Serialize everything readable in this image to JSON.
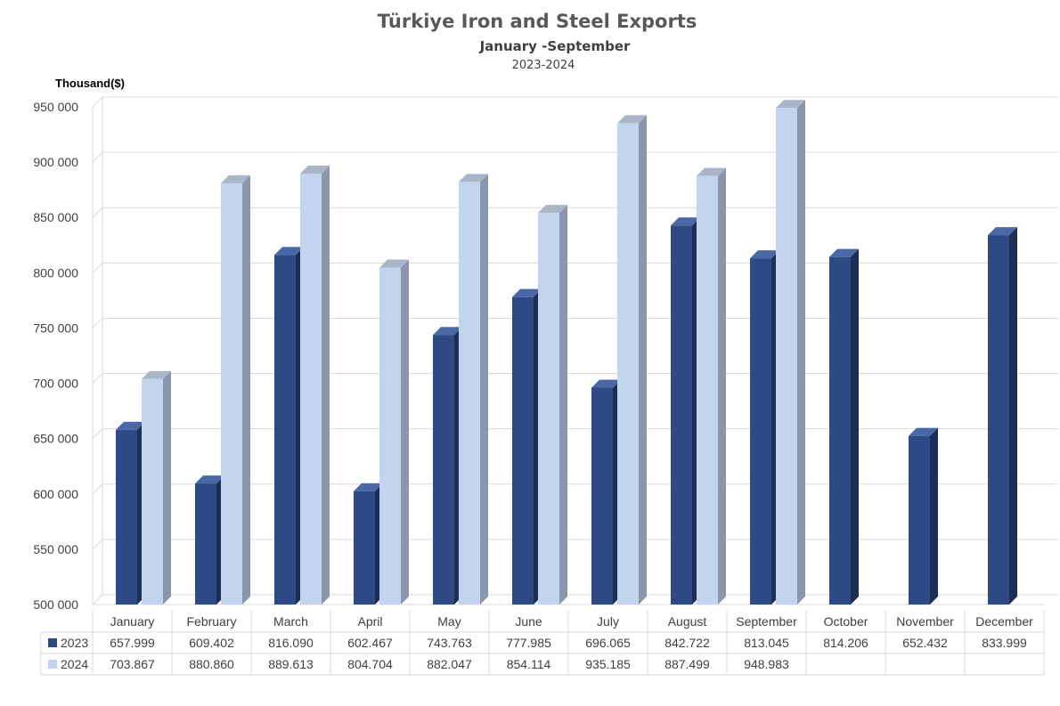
{
  "colors": {
    "series_2023": "#2e4a84",
    "series_2023_side": "#1c2e55",
    "series_2023_top": "#4a68a6",
    "series_2024": "#c3d4ef",
    "series_2024_side": "#8a96ab",
    "series_2024_top": "#aab5c8",
    "grid": "#d9d9d9",
    "text": "#404040",
    "title": "#595959"
  },
  "chart_data": {
    "type": "bar",
    "title": "Türkiye Iron and Steel Exports",
    "subtitle": "January -September",
    "period": "2023-2024",
    "ylabel": "Thousand($)",
    "xlabel": "",
    "ylim": [
      500000,
      950000
    ],
    "yticks": [
      500000,
      550000,
      600000,
      650000,
      700000,
      750000,
      800000,
      850000,
      900000,
      950000
    ],
    "ytick_labels": [
      "500 000",
      "550 000",
      "600 000",
      "650 000",
      "700 000",
      "750 000",
      "800 000",
      "850 000",
      "900 000",
      "950 000"
    ],
    "grid": true,
    "legend": "data-table",
    "categories": [
      "January",
      "February",
      "March",
      "April",
      "May",
      "June",
      "July",
      "August",
      "September",
      "October",
      "November",
      "December"
    ],
    "series": [
      {
        "name": "2023",
        "values": [
          657999,
          609402,
          816090,
          602467,
          743763,
          777985,
          696065,
          842722,
          813045,
          814206,
          652432,
          833999
        ],
        "labels": [
          "657.999",
          "609.402",
          "816.090",
          "602.467",
          "743.763",
          "777.985",
          "696.065",
          "842.722",
          "813.045",
          "814.206",
          "652.432",
          "833.999"
        ]
      },
      {
        "name": "2024",
        "values": [
          703867,
          880860,
          889613,
          804704,
          882047,
          854114,
          935185,
          887499,
          948983,
          null,
          null,
          null
        ],
        "labels": [
          "703.867",
          "880.860",
          "889.613",
          "804.704",
          "882.047",
          "854.114",
          "935.185",
          "887.499",
          "948.983",
          "",
          "",
          ""
        ]
      }
    ]
  }
}
